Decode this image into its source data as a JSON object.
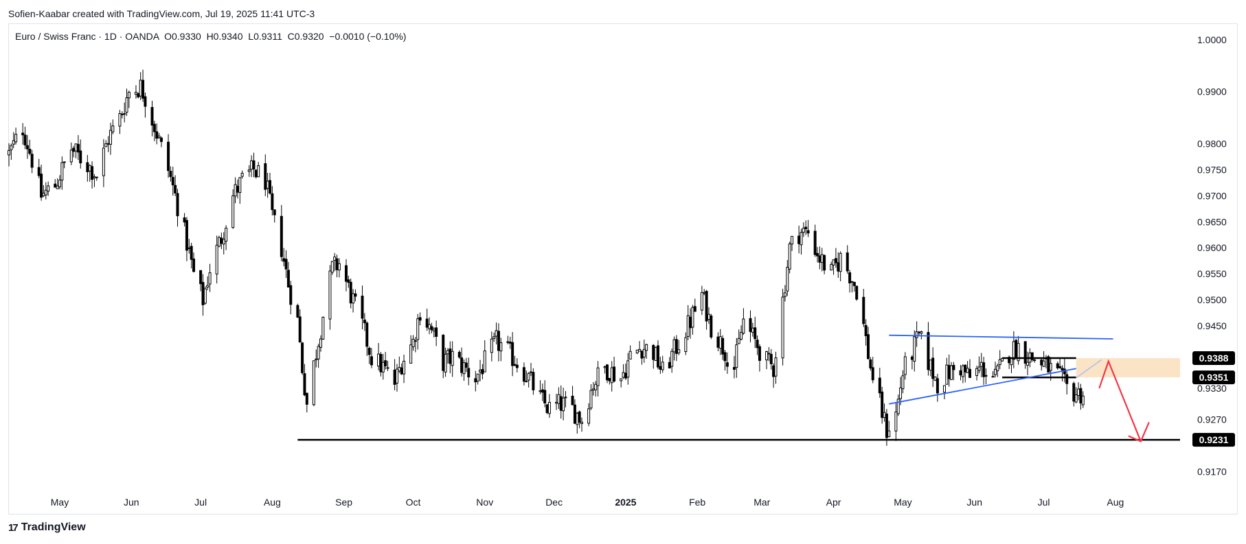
{
  "attribution": "Sofien-Kaabar created with TradingView.com, Jul 19, 2025 11:41 UTC-3",
  "legend": {
    "symbol": "Euro / Swiss Franc · 1D · OANDA",
    "open": "O0.9330",
    "high": "H0.9340",
    "low": "L0.9311",
    "close": "C0.9320",
    "change": "−0.0010 (−0.10%)"
  },
  "brand": {
    "logo": "17",
    "name": "TradingView"
  },
  "colors": {
    "up": "#ffffff",
    "down": "#000000",
    "wick": "#000000",
    "trendline": "#2962ff",
    "arrow": "#f23645",
    "zone": "#fbe3c5",
    "support": "#000000",
    "tag_bg": "#000000"
  },
  "chart_data": {
    "type": "candlestick",
    "x_start": "2024-04-09",
    "x_end": "2025-08-29",
    "ylim": [
      0.9135,
      1.003
    ],
    "y_ticks": [
      "1.0000",
      "0.9900",
      "0.9800",
      "0.9750",
      "0.9700",
      "0.9650",
      "0.9600",
      "0.9550",
      "0.9500",
      "0.9450",
      "0.9330",
      "0.9270",
      "0.9170"
    ],
    "x_ticks": [
      {
        "label": "May",
        "date": "2024-05-01",
        "bold": false
      },
      {
        "label": "Jun",
        "date": "2024-06-01",
        "bold": false
      },
      {
        "label": "Jul",
        "date": "2024-07-01",
        "bold": false
      },
      {
        "label": "Aug",
        "date": "2024-08-01",
        "bold": false
      },
      {
        "label": "Sep",
        "date": "2024-09-01",
        "bold": false
      },
      {
        "label": "Oct",
        "date": "2024-10-01",
        "bold": false
      },
      {
        "label": "Nov",
        "date": "2024-11-01",
        "bold": false
      },
      {
        "label": "Dec",
        "date": "2024-12-01",
        "bold": false
      },
      {
        "label": "2025",
        "date": "2025-01-01",
        "bold": true
      },
      {
        "label": "Feb",
        "date": "2025-02-01",
        "bold": false
      },
      {
        "label": "Mar",
        "date": "2025-03-01",
        "bold": false
      },
      {
        "label": "Apr",
        "date": "2025-04-01",
        "bold": false
      },
      {
        "label": "May",
        "date": "2025-05-01",
        "bold": false
      },
      {
        "label": "Jun",
        "date": "2025-06-01",
        "bold": false
      },
      {
        "label": "Jul",
        "date": "2025-07-01",
        "bold": false
      },
      {
        "label": "Aug",
        "date": "2025-08-01",
        "bold": false
      }
    ],
    "close_path": [
      [
        "2024-04-09",
        0.978
      ],
      [
        "2024-04-15",
        0.983
      ],
      [
        "2024-04-19",
        0.977
      ],
      [
        "2024-04-23",
        0.97
      ],
      [
        "2024-04-29",
        0.972
      ],
      [
        "2024-05-06",
        0.979
      ],
      [
        "2024-05-13",
        0.976
      ],
      [
        "2024-05-17",
        0.974
      ],
      [
        "2024-05-22",
        0.981
      ],
      [
        "2024-05-27",
        0.985
      ],
      [
        "2024-05-31",
        0.99
      ],
      [
        "2024-06-05",
        0.991
      ],
      [
        "2024-06-07",
        0.989
      ],
      [
        "2024-06-12",
        0.982
      ],
      [
        "2024-06-17",
        0.975
      ],
      [
        "2024-06-20",
        0.97
      ],
      [
        "2024-06-25",
        0.961
      ],
      [
        "2024-06-28",
        0.955
      ],
      [
        "2024-07-02",
        0.95
      ],
      [
        "2024-07-05",
        0.956
      ],
      [
        "2024-07-10",
        0.962
      ],
      [
        "2024-07-15",
        0.97
      ],
      [
        "2024-07-19",
        0.973
      ],
      [
        "2024-07-24",
        0.975
      ],
      [
        "2024-07-29",
        0.973
      ],
      [
        "2024-08-01",
        0.966
      ],
      [
        "2024-08-05",
        0.96
      ],
      [
        "2024-08-08",
        0.953
      ],
      [
        "2024-08-12",
        0.946
      ],
      [
        "2024-08-14",
        0.937
      ],
      [
        "2024-08-16",
        0.93
      ],
      [
        "2024-08-20",
        0.94
      ],
      [
        "2024-08-23",
        0.947
      ],
      [
        "2024-08-27",
        0.956
      ],
      [
        "2024-08-30",
        0.957
      ],
      [
        "2024-09-04",
        0.951
      ],
      [
        "2024-09-09",
        0.945
      ],
      [
        "2024-09-13",
        0.939
      ],
      [
        "2024-09-18",
        0.937
      ],
      [
        "2024-09-23",
        0.934
      ],
      [
        "2024-09-26",
        0.938
      ],
      [
        "2024-10-01",
        0.942
      ],
      [
        "2024-10-04",
        0.948
      ],
      [
        "2024-10-09",
        0.944
      ],
      [
        "2024-10-14",
        0.938
      ],
      [
        "2024-10-18",
        0.939
      ],
      [
        "2024-10-23",
        0.937
      ],
      [
        "2024-10-28",
        0.935
      ],
      [
        "2024-11-01",
        0.938
      ],
      [
        "2024-11-06",
        0.942
      ],
      [
        "2024-11-11",
        0.94
      ],
      [
        "2024-11-15",
        0.938
      ],
      [
        "2024-11-20",
        0.935
      ],
      [
        "2024-11-25",
        0.931
      ],
      [
        "2024-11-29",
        0.929
      ],
      [
        "2024-12-04",
        0.93
      ],
      [
        "2024-12-09",
        0.929
      ],
      [
        "2024-12-13",
        0.927
      ],
      [
        "2024-12-18",
        0.934
      ],
      [
        "2024-12-23",
        0.937
      ],
      [
        "2024-12-30",
        0.935
      ],
      [
        "2025-01-03",
        0.939
      ],
      [
        "2025-01-08",
        0.941
      ],
      [
        "2025-01-13",
        0.94
      ],
      [
        "2025-01-17",
        0.936
      ],
      [
        "2025-01-23",
        0.941
      ],
      [
        "2025-01-28",
        0.945
      ],
      [
        "2025-02-03",
        0.951
      ],
      [
        "2025-02-07",
        0.945
      ],
      [
        "2025-02-12",
        0.941
      ],
      [
        "2025-02-17",
        0.937
      ],
      [
        "2025-02-21",
        0.946
      ],
      [
        "2025-02-26",
        0.942
      ],
      [
        "2025-03-03",
        0.938
      ],
      [
        "2025-03-06",
        0.937
      ],
      [
        "2025-03-10",
        0.95
      ],
      [
        "2025-03-13",
        0.96
      ],
      [
        "2025-03-17",
        0.963
      ],
      [
        "2025-03-21",
        0.963
      ],
      [
        "2025-03-26",
        0.958
      ],
      [
        "2025-03-31",
        0.955
      ],
      [
        "2025-04-04",
        0.958
      ],
      [
        "2025-04-08",
        0.955
      ],
      [
        "2025-04-11",
        0.952
      ],
      [
        "2025-04-14",
        0.945
      ],
      [
        "2025-04-17",
        0.937
      ],
      [
        "2025-04-21",
        0.93
      ],
      [
        "2025-04-24",
        0.925
      ],
      [
        "2025-04-28",
        0.928
      ],
      [
        "2025-05-01",
        0.936
      ],
      [
        "2025-05-05",
        0.94
      ],
      [
        "2025-05-08",
        0.943
      ],
      [
        "2025-05-13",
        0.937
      ],
      [
        "2025-05-16",
        0.934
      ],
      [
        "2025-05-21",
        0.936
      ],
      [
        "2025-05-26",
        0.937
      ],
      [
        "2025-05-30",
        0.935
      ],
      [
        "2025-06-04",
        0.937
      ],
      [
        "2025-06-10",
        0.935
      ],
      [
        "2025-06-16",
        0.94
      ],
      [
        "2025-06-20",
        0.941
      ],
      [
        "2025-06-25",
        0.939
      ],
      [
        "2025-06-30",
        0.938
      ],
      [
        "2025-07-03",
        0.937
      ],
      [
        "2025-07-08",
        0.935
      ],
      [
        "2025-07-11",
        0.933
      ],
      [
        "2025-07-15",
        0.932
      ],
      [
        "2025-07-18",
        0.932
      ]
    ],
    "annotations": {
      "support_line": {
        "value": 0.9231,
        "from": "2024-08-12",
        "to": "2025-08-29"
      },
      "resistance_lines": [
        {
          "value": 0.9388,
          "from": "2025-06-13",
          "to": "2025-07-15"
        },
        {
          "value": 0.9351,
          "from": "2025-06-13",
          "to": "2025-07-15"
        }
      ],
      "zone": {
        "from_value": 0.9351,
        "to_value": 0.9388,
        "from": "2025-07-15",
        "to": "2025-08-29"
      },
      "trendlines": [
        {
          "from": [
            "2025-04-25",
            0.9432
          ],
          "to": [
            "2025-07-31",
            0.9425
          ]
        },
        {
          "from": [
            "2025-04-25",
            0.93
          ],
          "to": [
            "2025-07-15",
            0.9368
          ]
        }
      ],
      "projection_line": {
        "from": [
          "2025-07-15",
          0.935
        ],
        "to": [
          "2025-07-26",
          0.9385
        ]
      },
      "projection_arrow": [
        [
          "2025-07-25",
          0.933
        ],
        [
          "2025-07-29",
          0.9382
        ],
        [
          "2025-08-12",
          0.9228
        ]
      ],
      "price_tags": [
        {
          "label": "0.9388",
          "value": 0.9388
        },
        {
          "label": "0.9351",
          "value": 0.9351
        },
        {
          "label": "0.9231",
          "value": 0.9231
        }
      ]
    }
  }
}
